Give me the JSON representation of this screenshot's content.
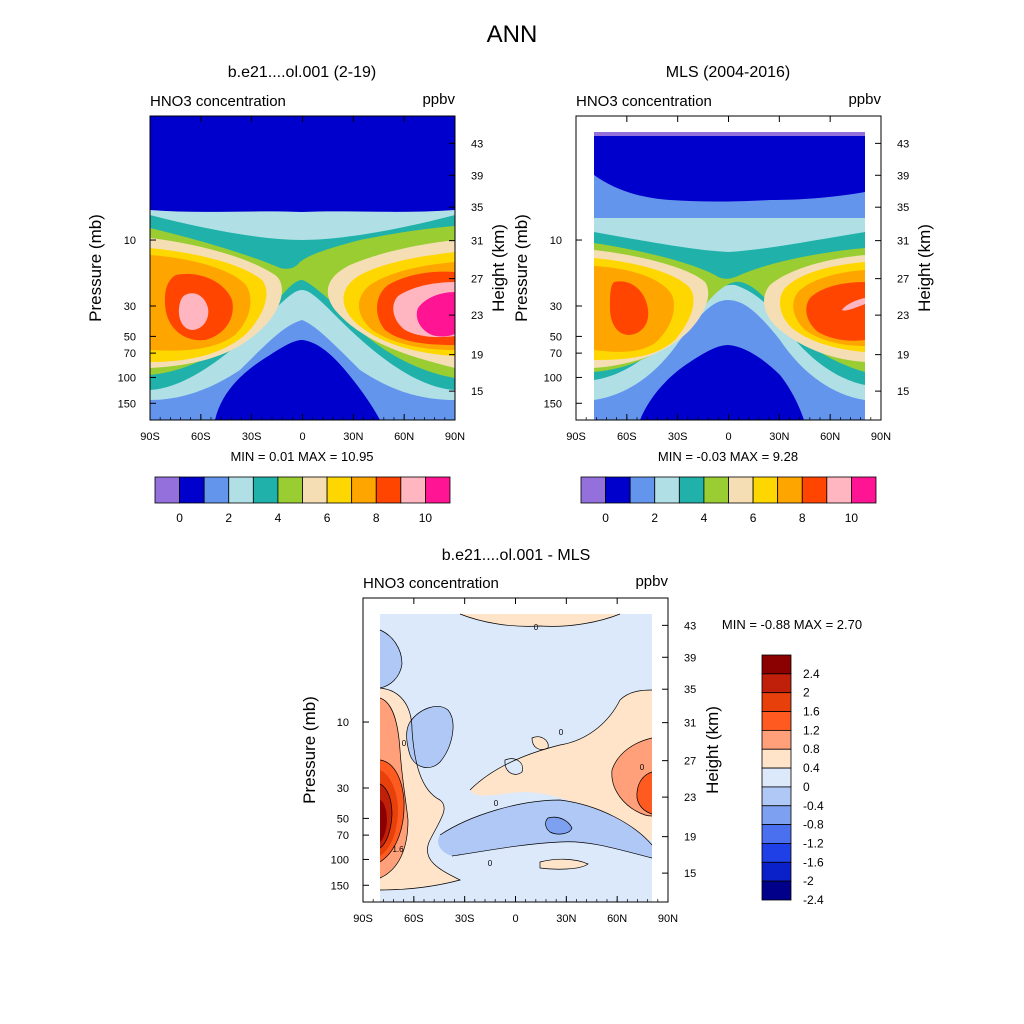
{
  "page_title": "ANN",
  "chart_data": [
    {
      "type": "heatmap",
      "id": "model",
      "title": "b.e21....ol.001 (2-19)",
      "left_label": "HNO3 concentration",
      "right_label": "ppbv",
      "ylabel": "Pressure (mb)",
      "y2label": "Height (km)",
      "x_ticks": [
        "90S",
        "60S",
        "30S",
        "0",
        "30N",
        "60N",
        "90N"
      ],
      "y_ticks": [
        "10",
        "30",
        "50",
        "70",
        "100",
        "150"
      ],
      "y2_ticks": [
        "43",
        "39",
        "35",
        "31",
        "27",
        "23",
        "19",
        "15"
      ],
      "min_text": "MIN =   0.01  MAX =   10.95",
      "lat_range": [
        -90,
        90
      ],
      "colorbar_labels": [
        "0",
        "2",
        "4",
        "6",
        "8",
        "10"
      ],
      "colorbar_colors": [
        "#9370db",
        "#0000cd",
        "#6495ed",
        "#b0e0e6",
        "#20b2aa",
        "#9acd32",
        "#f5deb3",
        "#ffd700",
        "#ffa500",
        "#ff4500",
        "#ffb6c1",
        "#ff1493"
      ]
    },
    {
      "type": "heatmap",
      "id": "obs",
      "title": "MLS (2004-2016)",
      "left_label": "HNO3 concentration",
      "right_label": "ppbv",
      "ylabel": "Pressure (mb)",
      "y2label": "Height (km)",
      "x_ticks": [
        "90S",
        "60S",
        "30S",
        "0",
        "30N",
        "60N",
        "90N"
      ],
      "y_ticks": [
        "10",
        "30",
        "50",
        "70",
        "100",
        "150"
      ],
      "y2_ticks": [
        "43",
        "39",
        "35",
        "31",
        "27",
        "23",
        "19",
        "15"
      ],
      "min_text": "MIN =  -0.03  MAX =   9.28",
      "lat_range": [
        -80,
        80
      ],
      "colorbar_labels": [
        "0",
        "2",
        "4",
        "6",
        "8",
        "10"
      ],
      "colorbar_colors": [
        "#9370db",
        "#0000cd",
        "#6495ed",
        "#b0e0e6",
        "#20b2aa",
        "#9acd32",
        "#f5deb3",
        "#ffd700",
        "#ffa500",
        "#ff4500",
        "#ffb6c1",
        "#ff1493"
      ]
    },
    {
      "type": "heatmap",
      "id": "diff",
      "title": "b.e21....ol.001 - MLS",
      "left_label": "HNO3 concentration",
      "right_label": "ppbv",
      "ylabel": "Pressure (mb)",
      "y2label": "Height (km)",
      "x_ticks": [
        "90S",
        "60S",
        "30S",
        "0",
        "30N",
        "60N",
        "90N"
      ],
      "y_ticks": [
        "10",
        "30",
        "50",
        "70",
        "100",
        "150"
      ],
      "y2_ticks": [
        "43",
        "39",
        "35",
        "31",
        "27",
        "23",
        "19",
        "15"
      ],
      "min_text": "MIN =  -0.88  MAX =    2.70",
      "lat_range": [
        -80,
        80
      ],
      "contour_labels": [
        "0",
        "0",
        "0",
        "0",
        "0",
        "0",
        "1.6"
      ],
      "colorbar_labels": [
        "2.4",
        "2",
        "1.6",
        "1.2",
        "0.8",
        "0.4",
        "0",
        "-0.4",
        "-0.8",
        "-1.2",
        "-1.6",
        "-2",
        "-2.4"
      ],
      "colorbar_colors": [
        "#8b0000",
        "#c0200a",
        "#e8400a",
        "#ff5a1f",
        "#ffa07a",
        "#ffe4c9",
        "#dbe9fb",
        "#b0c8f5",
        "#7ea0f0",
        "#4a70f0",
        "#1e40e6",
        "#0a20c8",
        "#00008b"
      ]
    }
  ]
}
